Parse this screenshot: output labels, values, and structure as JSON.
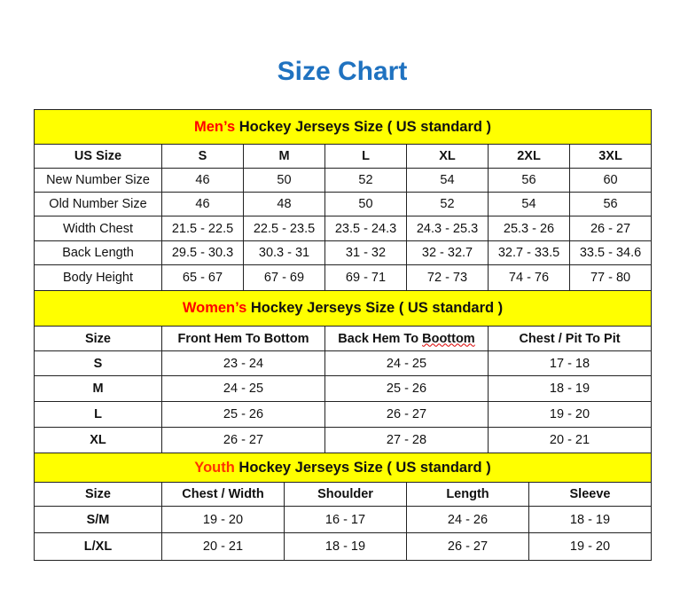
{
  "title": "Size Chart",
  "colors": {
    "title": "#1f72c0",
    "header_bg": "#ffff00",
    "mens": "#ff0000",
    "womens": "#ff0000",
    "youth": "#ff3300"
  },
  "mens": {
    "accent": "Men’s",
    "header": " Hockey Jerseys Size ( US standard )",
    "columns": [
      "US Size",
      "S",
      "M",
      "L",
      "XL",
      "2XL",
      "3XL"
    ],
    "rows": [
      [
        "New Number Size",
        "46",
        "50",
        "52",
        "54",
        "56",
        "60"
      ],
      [
        "Old Number Size",
        "46",
        "48",
        "50",
        "52",
        "54",
        "56"
      ],
      [
        "Width Chest",
        "21.5 - 22.5",
        "22.5 - 23.5",
        "23.5 - 24.3",
        "24.3 - 25.3",
        "25.3 - 26",
        "26 - 27"
      ],
      [
        "Back Length",
        "29.5 - 30.3",
        "30.3 - 31",
        "31 - 32",
        "32 - 32.7",
        "32.7 - 33.5",
        "33.5 - 34.6"
      ],
      [
        "Body Height",
        "65 - 67",
        "67 - 69",
        "69 - 71",
        "72 - 73",
        "74 - 76",
        "77 - 80"
      ]
    ]
  },
  "womens": {
    "accent": "Women’s",
    "header": " Hockey Jerseys Size ( US standard )",
    "columns": [
      "Size",
      "Front Hem To Bottom",
      "Back Hem To Boottom",
      "Chest / Pit To Pit"
    ],
    "rows": [
      [
        "S",
        "23 - 24",
        "24 - 25",
        "17 - 18"
      ],
      [
        "M",
        "24 - 25",
        "25 - 26",
        "18 - 19"
      ],
      [
        "L",
        "25 - 26",
        "26 - 27",
        "19 - 20"
      ],
      [
        "XL",
        "26 - 27",
        "27 - 28",
        "20 - 21"
      ]
    ]
  },
  "youth": {
    "accent": "Youth",
    "header": " Hockey Jerseys Size ( US standard )",
    "columns": [
      "Size",
      "Chest / Width",
      "Shoulder",
      "Length",
      "Sleeve"
    ],
    "rows": [
      [
        "S/M",
        "19 - 20",
        "16 - 17",
        "24 - 26",
        "18 - 19"
      ],
      [
        "L/XL",
        "20 - 21",
        "18 - 19",
        "26 - 27",
        "19 - 20"
      ]
    ]
  }
}
